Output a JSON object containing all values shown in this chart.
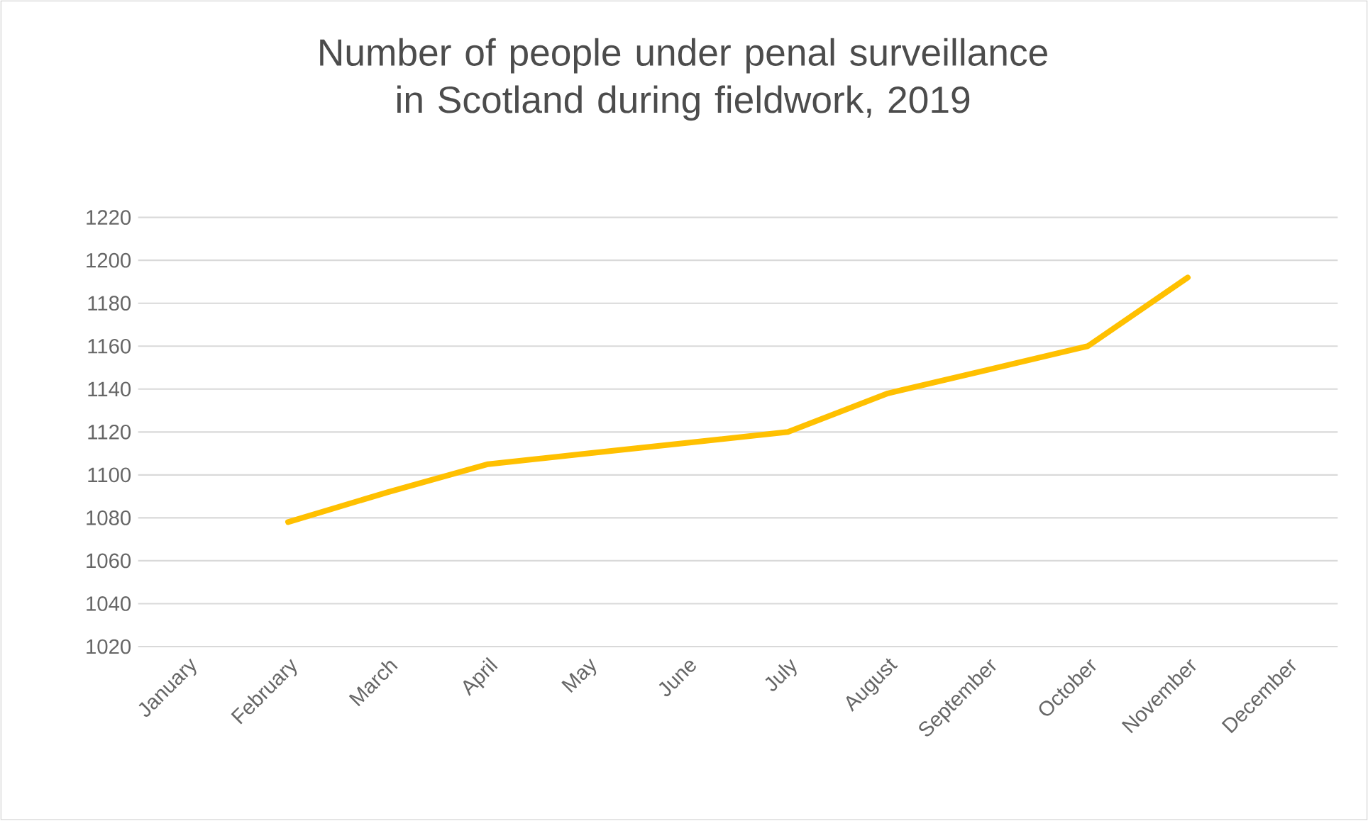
{
  "chart_data": {
    "type": "line",
    "title": "Number of people under penal surveillance in Scotland during fieldwork, 2019",
    "categories": [
      "January",
      "February",
      "March",
      "April",
      "May",
      "June",
      "July",
      "August",
      "September",
      "October",
      "November",
      "December"
    ],
    "values": [
      null,
      1078,
      1092,
      1105,
      1110,
      1115,
      1120,
      1138,
      1149,
      1160,
      1192,
      null
    ],
    "color": "#ffc000",
    "ylim": [
      1020,
      1220
    ],
    "yticks": [
      1020,
      1040,
      1060,
      1080,
      1100,
      1120,
      1140,
      1160,
      1180,
      1200,
      1220
    ],
    "grid": "y",
    "marker": "none",
    "line_style": "solid"
  }
}
